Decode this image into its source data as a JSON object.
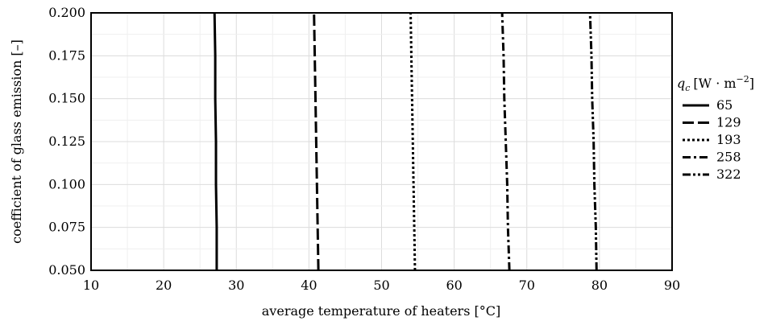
{
  "chart_data": {
    "type": "line",
    "xlabel": "average temperature of heaters [°C]",
    "ylabel": "coefficient of glass emission [–]",
    "xlim": [
      10,
      90
    ],
    "ylim": [
      0.05,
      0.2
    ],
    "xticks": [
      "10",
      "20",
      "30",
      "40",
      "50",
      "60",
      "70",
      "80",
      "90"
    ],
    "yticks": [
      "0.050",
      "0.075",
      "0.100",
      "0.125",
      "0.150",
      "0.175",
      "0.200"
    ],
    "grid": true,
    "legend_position": "right",
    "legend_title_symbol": "q",
    "legend_title_subscript": "c",
    "legend_title_unit": "[W · m",
    "legend_title_exponent": "−2",
    "legend_title_close": "]",
    "y": [
      0.05,
      0.075,
      0.1,
      0.125,
      0.15,
      0.175,
      0.2
    ],
    "series": [
      {
        "name": "65",
        "style": "solid",
        "x": [
          27.3,
          27.3,
          27.2,
          27.2,
          27.1,
          27.1,
          27.0
        ]
      },
      {
        "name": "129",
        "style": "dashed",
        "x": [
          41.3,
          41.2,
          41.1,
          41.0,
          40.9,
          40.8,
          40.7
        ]
      },
      {
        "name": "193",
        "style": "dotted",
        "x": [
          54.6,
          54.5,
          54.4,
          54.3,
          54.2,
          54.1,
          54.0
        ]
      },
      {
        "name": "258",
        "style": "dashdot",
        "x": [
          67.6,
          67.4,
          67.3,
          67.1,
          66.9,
          66.8,
          66.6
        ]
      },
      {
        "name": "322",
        "style": "dashdotdot",
        "x": [
          79.6,
          79.5,
          79.3,
          79.2,
          79.0,
          78.9,
          78.7
        ]
      }
    ]
  }
}
